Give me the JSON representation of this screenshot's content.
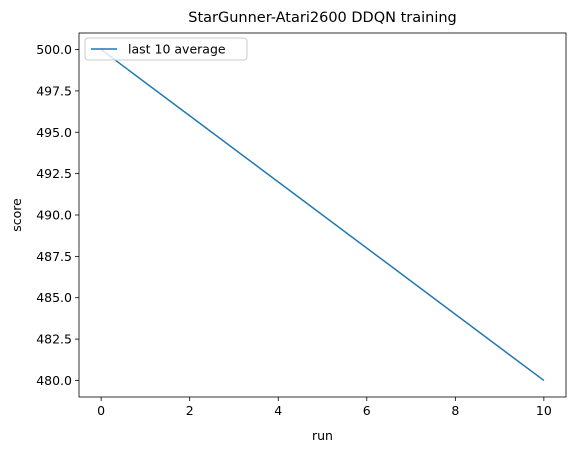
{
  "chart_data": {
    "type": "line",
    "title": "StarGunner-Atari2600 DDQN training",
    "xlabel": "run",
    "ylabel": "score",
    "xlim": [
      -0.5,
      10.5
    ],
    "ylim": [
      479,
      501
    ],
    "xticks": [
      0,
      2,
      4,
      6,
      8,
      10
    ],
    "yticks": [
      480.0,
      482.5,
      485.0,
      487.5,
      490.0,
      492.5,
      495.0,
      497.5,
      500.0
    ],
    "xtick_labels": [
      "0",
      "2",
      "4",
      "6",
      "8",
      "10"
    ],
    "ytick_labels": [
      "480.0",
      "482.5",
      "485.0",
      "487.5",
      "490.0",
      "492.5",
      "495.0",
      "497.5",
      "500.0"
    ],
    "grid": false,
    "legend_position": "upper-left",
    "series": [
      {
        "name": "last 10 average",
        "color": "#1f77b4",
        "x": [
          0,
          10
        ],
        "y": [
          500,
          480
        ]
      }
    ]
  }
}
